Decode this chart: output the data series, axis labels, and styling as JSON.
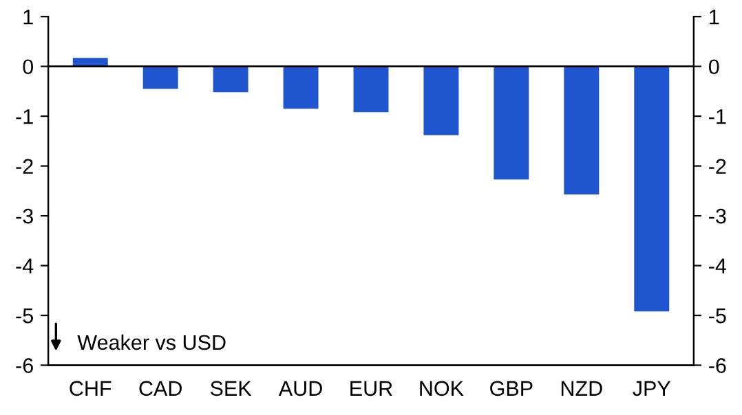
{
  "chart_data": {
    "type": "bar",
    "categories": [
      "CHF",
      "CAD",
      "SEK",
      "AUD",
      "EUR",
      "NOK",
      "GBP",
      "NZD",
      "JPY"
    ],
    "values": [
      0.17,
      -0.45,
      -0.52,
      -0.85,
      -0.92,
      -1.38,
      -2.27,
      -2.57,
      -4.92
    ],
    "color": "#1f56d0",
    "ylim": [
      -6,
      1
    ],
    "yticks": [
      -6,
      -5,
      -4,
      -3,
      -2,
      -1,
      0,
      1
    ],
    "y2lim": [
      -6,
      1
    ],
    "y2ticks": [
      -6,
      -5,
      -4,
      -3,
      -2,
      -1,
      0,
      1
    ],
    "annotations": [
      "Weaker vs USD"
    ],
    "ref_lines": [
      {
        "axis": "y",
        "value": 0,
        "color": "#000000"
      }
    ],
    "legend": false
  }
}
